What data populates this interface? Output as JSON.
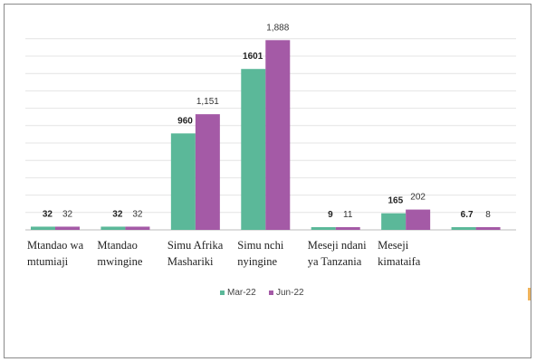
{
  "chart_data": {
    "type": "bar",
    "categories": [
      [
        "Mtandao wa",
        "mtumiaji"
      ],
      [
        "Mtandao",
        "mwingine"
      ],
      [
        "Simu Afrika",
        "Mashariki"
      ],
      [
        "Simu nchi",
        "nyingine"
      ],
      [
        "Meseji ndani",
        "ya Tanzania"
      ],
      [
        "Meseji",
        "kimataifa"
      ],
      [
        "",
        ""
      ]
    ],
    "series": [
      {
        "name": "Mar-22",
        "color": "#5bb899",
        "values": [
          32,
          32,
          960,
          1601,
          9,
          165,
          6.7
        ],
        "labels": [
          "32",
          "32",
          "960",
          "1601",
          "9",
          "165",
          "6.7"
        ]
      },
      {
        "name": "Jun-22",
        "color": "#a45aa6",
        "values": [
          32,
          32,
          1151,
          1888,
          11,
          202,
          8
        ],
        "labels": [
          "32",
          "32",
          "1,151",
          "1,888",
          "11",
          "202",
          "8"
        ]
      }
    ],
    "ylim": [
      0,
      1900
    ],
    "grid": true,
    "legend_position": "bottom"
  }
}
